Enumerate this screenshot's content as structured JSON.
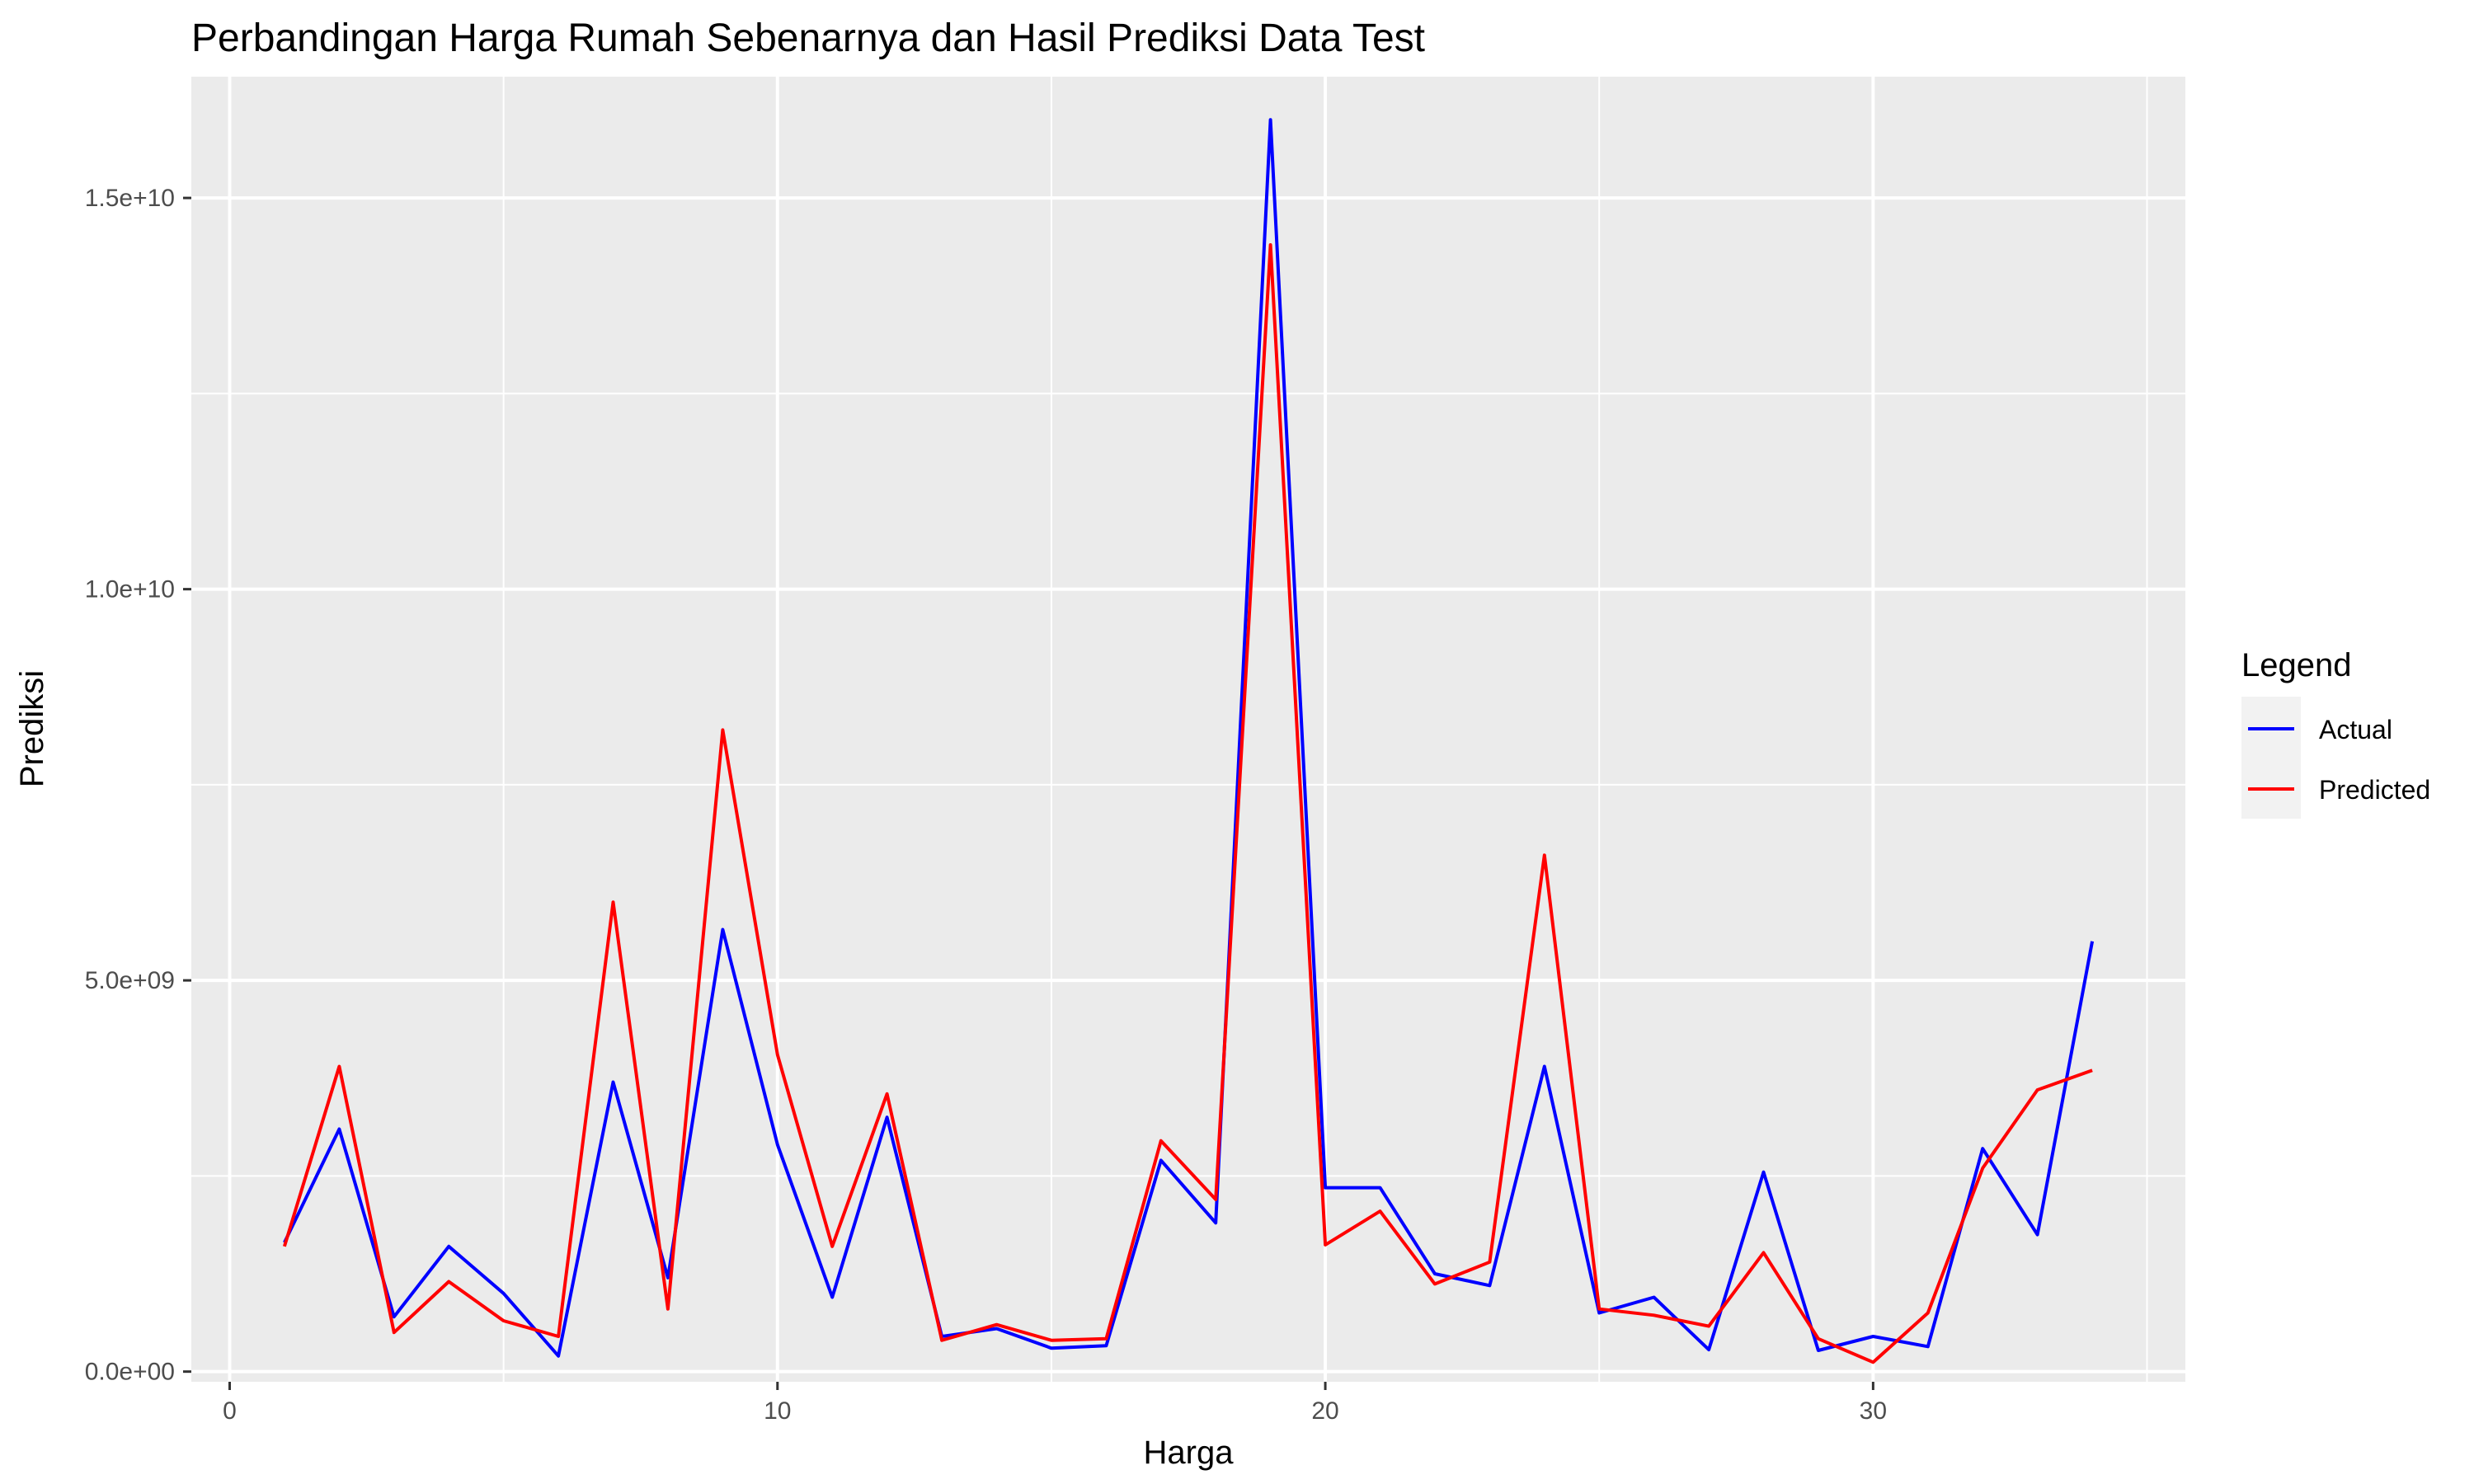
{
  "chart_data": {
    "type": "line",
    "title": "Perbandingan Harga Rumah Sebenarnya dan Hasil Prediksi Data Test",
    "xlabel": "Harga",
    "ylabel": "Prediksi",
    "xlim": [
      -0.7,
      35.7
    ],
    "ylim": [
      -130000000.0,
      16550000000.0
    ],
    "x_ticks": [
      0,
      10,
      20,
      30
    ],
    "x_tick_labels": [
      "0",
      "10",
      "20",
      "30"
    ],
    "y_ticks": [
      0,
      5000000000,
      10000000000,
      15000000000
    ],
    "y_tick_labels": [
      "0.0e+00",
      "5.0e+09",
      "1.0e+10",
      "1.5e+10"
    ],
    "grid": true,
    "legend": {
      "title": "Legend",
      "position": "right"
    },
    "x": [
      1,
      2,
      3,
      4,
      5,
      6,
      7,
      8,
      9,
      10,
      11,
      12,
      13,
      14,
      15,
      16,
      17,
      18,
      19,
      20,
      21,
      22,
      23,
      24,
      25,
      26,
      27,
      28,
      29,
      30,
      31,
      32,
      33,
      34
    ],
    "series": [
      {
        "name": "Actual",
        "color": "#0000ff",
        "values": [
          1650000000.0,
          3100000000.0,
          700000000.0,
          1600000000.0,
          1000000000.0,
          200000000.0,
          3700000000.0,
          1200000000.0,
          5650000000.0,
          2900000000.0,
          950000000.0,
          3250000000.0,
          450000000.0,
          550000000.0,
          300000000.0,
          330000000.0,
          2700000000.0,
          1900000000.0,
          16000000000.0,
          2350000000.0,
          2350000000.0,
          1250000000.0,
          1100000000.0,
          3900000000.0,
          750000000.0,
          950000000.0,
          280000000.0,
          2550000000.0,
          270000000.0,
          450000000.0,
          320000000.0,
          2850000000.0,
          1750000000.0,
          5500000000.0
        ]
      },
      {
        "name": "Predicted",
        "color": "#ff0000",
        "values": [
          1600000000.0,
          3900000000.0,
          500000000.0,
          1150000000.0,
          650000000.0,
          450000000.0,
          6000000000.0,
          800000000.0,
          8200000000.0,
          4050000000.0,
          1600000000.0,
          3550000000.0,
          400000000.0,
          600000000.0,
          400000000.0,
          420000000.0,
          2950000000.0,
          2200000000.0,
          14400000000.0,
          1620000000.0,
          2050000000.0,
          1120000000.0,
          1400000000.0,
          6600000000.0,
          800000000.0,
          720000000.0,
          580000000.0,
          1520000000.0,
          420000000.0,
          120000000.0,
          750000000.0,
          2600000000.0,
          3600000000.0,
          3850000000.0
        ]
      }
    ]
  }
}
